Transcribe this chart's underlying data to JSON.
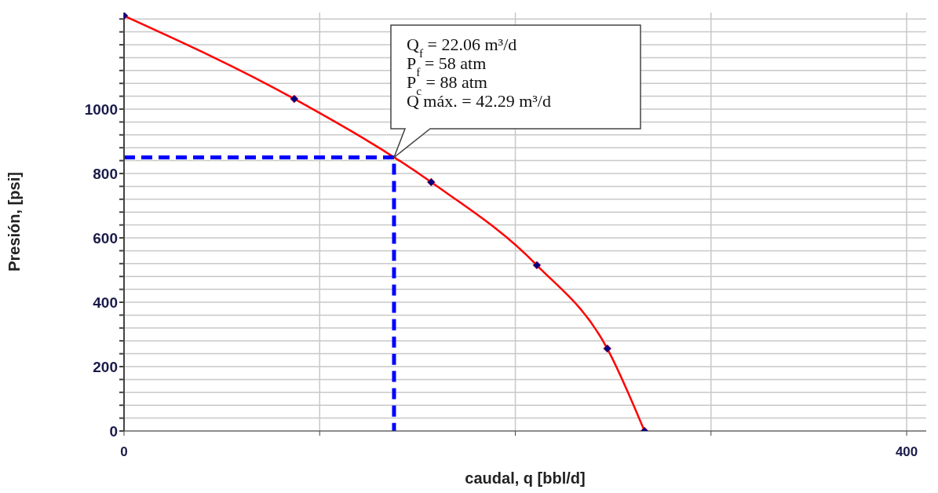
{
  "chart_data": {
    "type": "line",
    "xlabel": "caudal, q [bbl/d]",
    "ylabel": "Presión, [psi]",
    "xlim": [
      0,
      410
    ],
    "xticks": [
      0,
      {
        "value": 100,
        "label": null
      },
      {
        "value": 200,
        "label": null
      },
      {
        "value": 300,
        "label": null
      },
      400
    ],
    "ylim": [
      0,
      1300
    ],
    "yticks": [
      0,
      {
        "value": 40,
        "label": null
      },
      {
        "value": 80,
        "label": null
      },
      {
        "value": 120,
        "label": null
      },
      {
        "value": 160,
        "label": null
      },
      200,
      {
        "value": 240,
        "label": null
      },
      {
        "value": 280,
        "label": null
      },
      {
        "value": 320,
        "label": null
      },
      {
        "value": 360,
        "label": null
      },
      400,
      {
        "value": 440,
        "label": null
      },
      {
        "value": 480,
        "label": null
      },
      {
        "value": 520,
        "label": null
      },
      {
        "value": 560,
        "label": null
      },
      600,
      {
        "value": 640,
        "label": null
      },
      {
        "value": 680,
        "label": null
      },
      {
        "value": 720,
        "label": null
      },
      {
        "value": 760,
        "label": null
      },
      800,
      {
        "value": 840,
        "label": null
      },
      {
        "value": 880,
        "label": null
      },
      {
        "value": 920,
        "label": null
      },
      {
        "value": 960,
        "label": null
      },
      1000,
      {
        "value": 1040,
        "label": null
      },
      {
        "value": 1080,
        "label": null
      },
      {
        "value": 1120,
        "label": null
      },
      {
        "value": 1160,
        "label": null
      },
      {
        "value": 1200,
        "label": null
      },
      {
        "value": 1240,
        "label": null
      },
      {
        "value": 1280,
        "label": null
      }
    ],
    "grid": true,
    "series": [
      {
        "color": "#ff0000",
        "marker": "diamond",
        "line_style": "solid",
        "x": [
          0,
          87,
          157,
          211,
          247,
          266
        ],
        "values": [
          1290,
          1032,
          773,
          515,
          256,
          0
        ]
      },
      {
        "color": "#0000ff",
        "marker": "none",
        "line_style": "dashed",
        "x": [
          0,
          138,
          138
        ],
        "values": [
          850,
          850,
          0
        ]
      }
    ],
    "annotations": [
      "Q$_{f}$ = 22.06 m³/d",
      "P$_{f}$ = 58 atm",
      "P$_{c}$ = 88 atm",
      "Q máx. = 42.29 m³/d"
    ]
  }
}
